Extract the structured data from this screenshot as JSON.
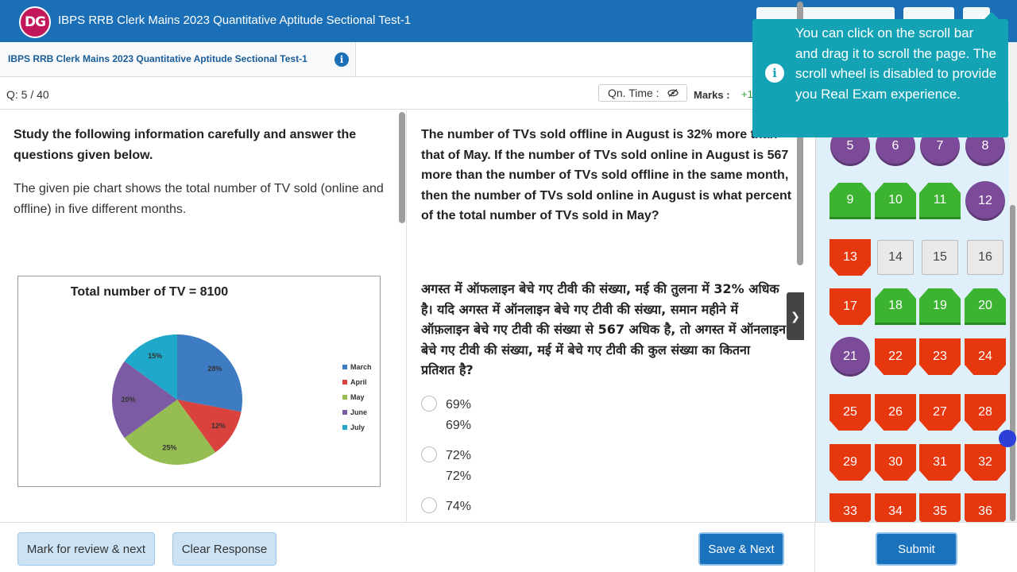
{
  "app": {
    "logo_text": "DG",
    "title": "IBPS RRB Clerk Mains 2023 Quantitative Aptitude Sectional Test-1"
  },
  "section": {
    "tab_title": "IBPS RRB Clerk Mains 2023 Quantitative Aptitude Sectional Test-1"
  },
  "question_bar": {
    "counter": "Q: 5 / 40",
    "time_label": "Qn. Time :",
    "marks_label": "Marks :",
    "marks_value": "+1"
  },
  "passage": {
    "heading": "Study the following information carefully and answer the questions given below.",
    "text": "The given pie chart shows the total number of TV sold (online and offline) in five different months."
  },
  "chart_data": {
    "type": "pie",
    "title": "Total number of TV = 8100",
    "categories": [
      "March",
      "April",
      "May",
      "June",
      "July"
    ],
    "values": [
      28,
      12,
      25,
      20,
      15
    ],
    "value_labels": [
      "28%",
      "12%",
      "25%",
      "20%",
      "15%"
    ],
    "colors": [
      "#3d7cc2",
      "#d9423d",
      "#95bd52",
      "#7b5ba3",
      "#1fa8c9"
    ],
    "legend_position": "right"
  },
  "question": {
    "english": "The number of TVs sold offline in August is 32% more than that of May. If the number of TVs sold online in August is 567 more than the number of TVs sold offline in the same month, then the number of TVs sold online in August is what percent of the total number of TVs sold in May?",
    "hindi": "अगस्त में ऑफलाइन बेचे गए टीवी की संख्या, मई की तुलना में 32% अधिक है। यदि अगस्त में ऑनलाइन बेचे गए टीवी की संख्या, समान महीने में ऑफ़लाइन बेचे गए टीवी की संख्या से 567 अधिक है, तो अगस्त में ऑनलाइन बेचे गए टीवी की संख्या, मई में बेचे गए टीवी की कुल संख्या का कितना प्रतिशत है?",
    "options": [
      {
        "en": "69%",
        "hi": "69%"
      },
      {
        "en": "72%",
        "hi": "72%"
      },
      {
        "en": "74%",
        "hi": ""
      }
    ]
  },
  "buttons": {
    "mark_review": "Mark for review & next",
    "clear": "Clear Response",
    "save_next": "Save & Next",
    "submit": "Submit"
  },
  "tooltip": {
    "text": "You can click on the scroll bar and drag it to scroll the page. The scroll wheel is disabled to provide you Real Exam experience."
  },
  "palette": [
    {
      "n": "5",
      "s": "review"
    },
    {
      "n": "6",
      "s": "review"
    },
    {
      "n": "7",
      "s": "review"
    },
    {
      "n": "8",
      "s": "review"
    },
    {
      "n": "9",
      "s": "answered"
    },
    {
      "n": "10",
      "s": "answered"
    },
    {
      "n": "11",
      "s": "answered"
    },
    {
      "n": "12",
      "s": "review"
    },
    {
      "n": "13",
      "s": "not-answered"
    },
    {
      "n": "14",
      "s": "not-visited"
    },
    {
      "n": "15",
      "s": "not-visited"
    },
    {
      "n": "16",
      "s": "not-visited"
    },
    {
      "n": "17",
      "s": "not-answered"
    },
    {
      "n": "18",
      "s": "answered"
    },
    {
      "n": "19",
      "s": "answered"
    },
    {
      "n": "20",
      "s": "answered"
    },
    {
      "n": "21",
      "s": "review"
    },
    {
      "n": "22",
      "s": "not-answered"
    },
    {
      "n": "23",
      "s": "not-answered"
    },
    {
      "n": "24",
      "s": "not-answered"
    },
    {
      "n": "25",
      "s": "not-answered"
    },
    {
      "n": "26",
      "s": "not-answered"
    },
    {
      "n": "27",
      "s": "not-answered"
    },
    {
      "n": "28",
      "s": "not-answered"
    },
    {
      "n": "29",
      "s": "not-answered"
    },
    {
      "n": "30",
      "s": "not-answered"
    },
    {
      "n": "31",
      "s": "not-answered"
    },
    {
      "n": "32",
      "s": "not-answered"
    },
    {
      "n": "33",
      "s": "not-answered"
    },
    {
      "n": "34",
      "s": "not-answered"
    },
    {
      "n": "35",
      "s": "not-answered"
    },
    {
      "n": "36",
      "s": "not-answered"
    }
  ],
  "colors": {
    "header": "#1a6fb6",
    "answered": "#3db332",
    "not_answered": "#e6370f",
    "review": "#7b4a98",
    "tooltip": "#14a3b5"
  }
}
